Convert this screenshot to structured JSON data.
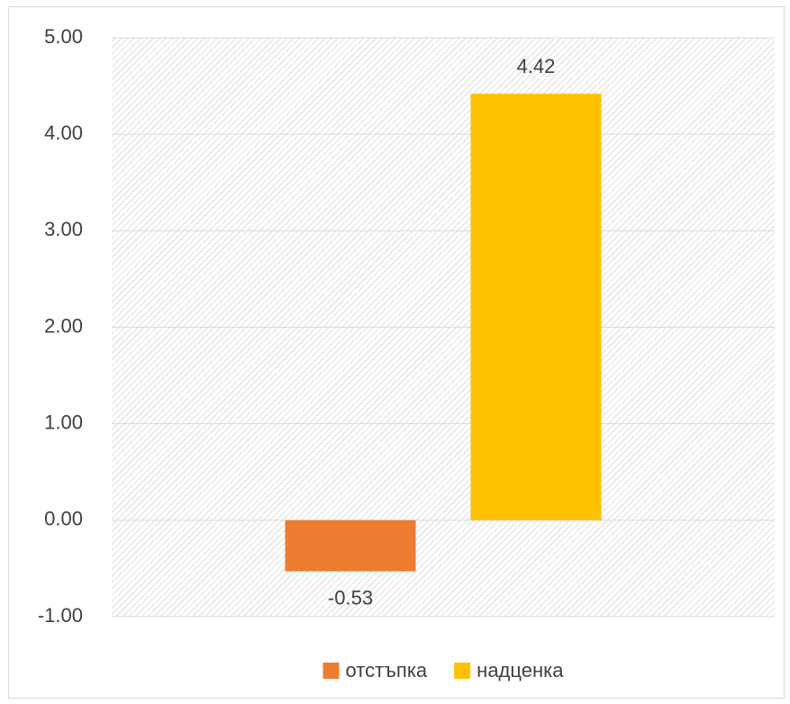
{
  "chart_data": {
    "type": "bar",
    "categories": [
      null
    ],
    "series": [
      {
        "name": "отстъпка",
        "color": "#ED7D31",
        "values": [
          -0.53
        ]
      },
      {
        "name": "надценка",
        "color": "#FFC000",
        "values": [
          4.42
        ]
      }
    ],
    "ylim": [
      -1,
      5
    ],
    "yticks": [
      {
        "value": -1,
        "label": "-1.00"
      },
      {
        "value": 0,
        "label": "0.00"
      },
      {
        "value": 1,
        "label": "1.00"
      },
      {
        "value": 2,
        "label": "2.00"
      },
      {
        "value": 3,
        "label": "3.00"
      },
      {
        "value": 4,
        "label": "4.00"
      },
      {
        "value": 5,
        "label": "5.00"
      }
    ],
    "grid": true,
    "legend": "bottom",
    "data_labels": true
  }
}
